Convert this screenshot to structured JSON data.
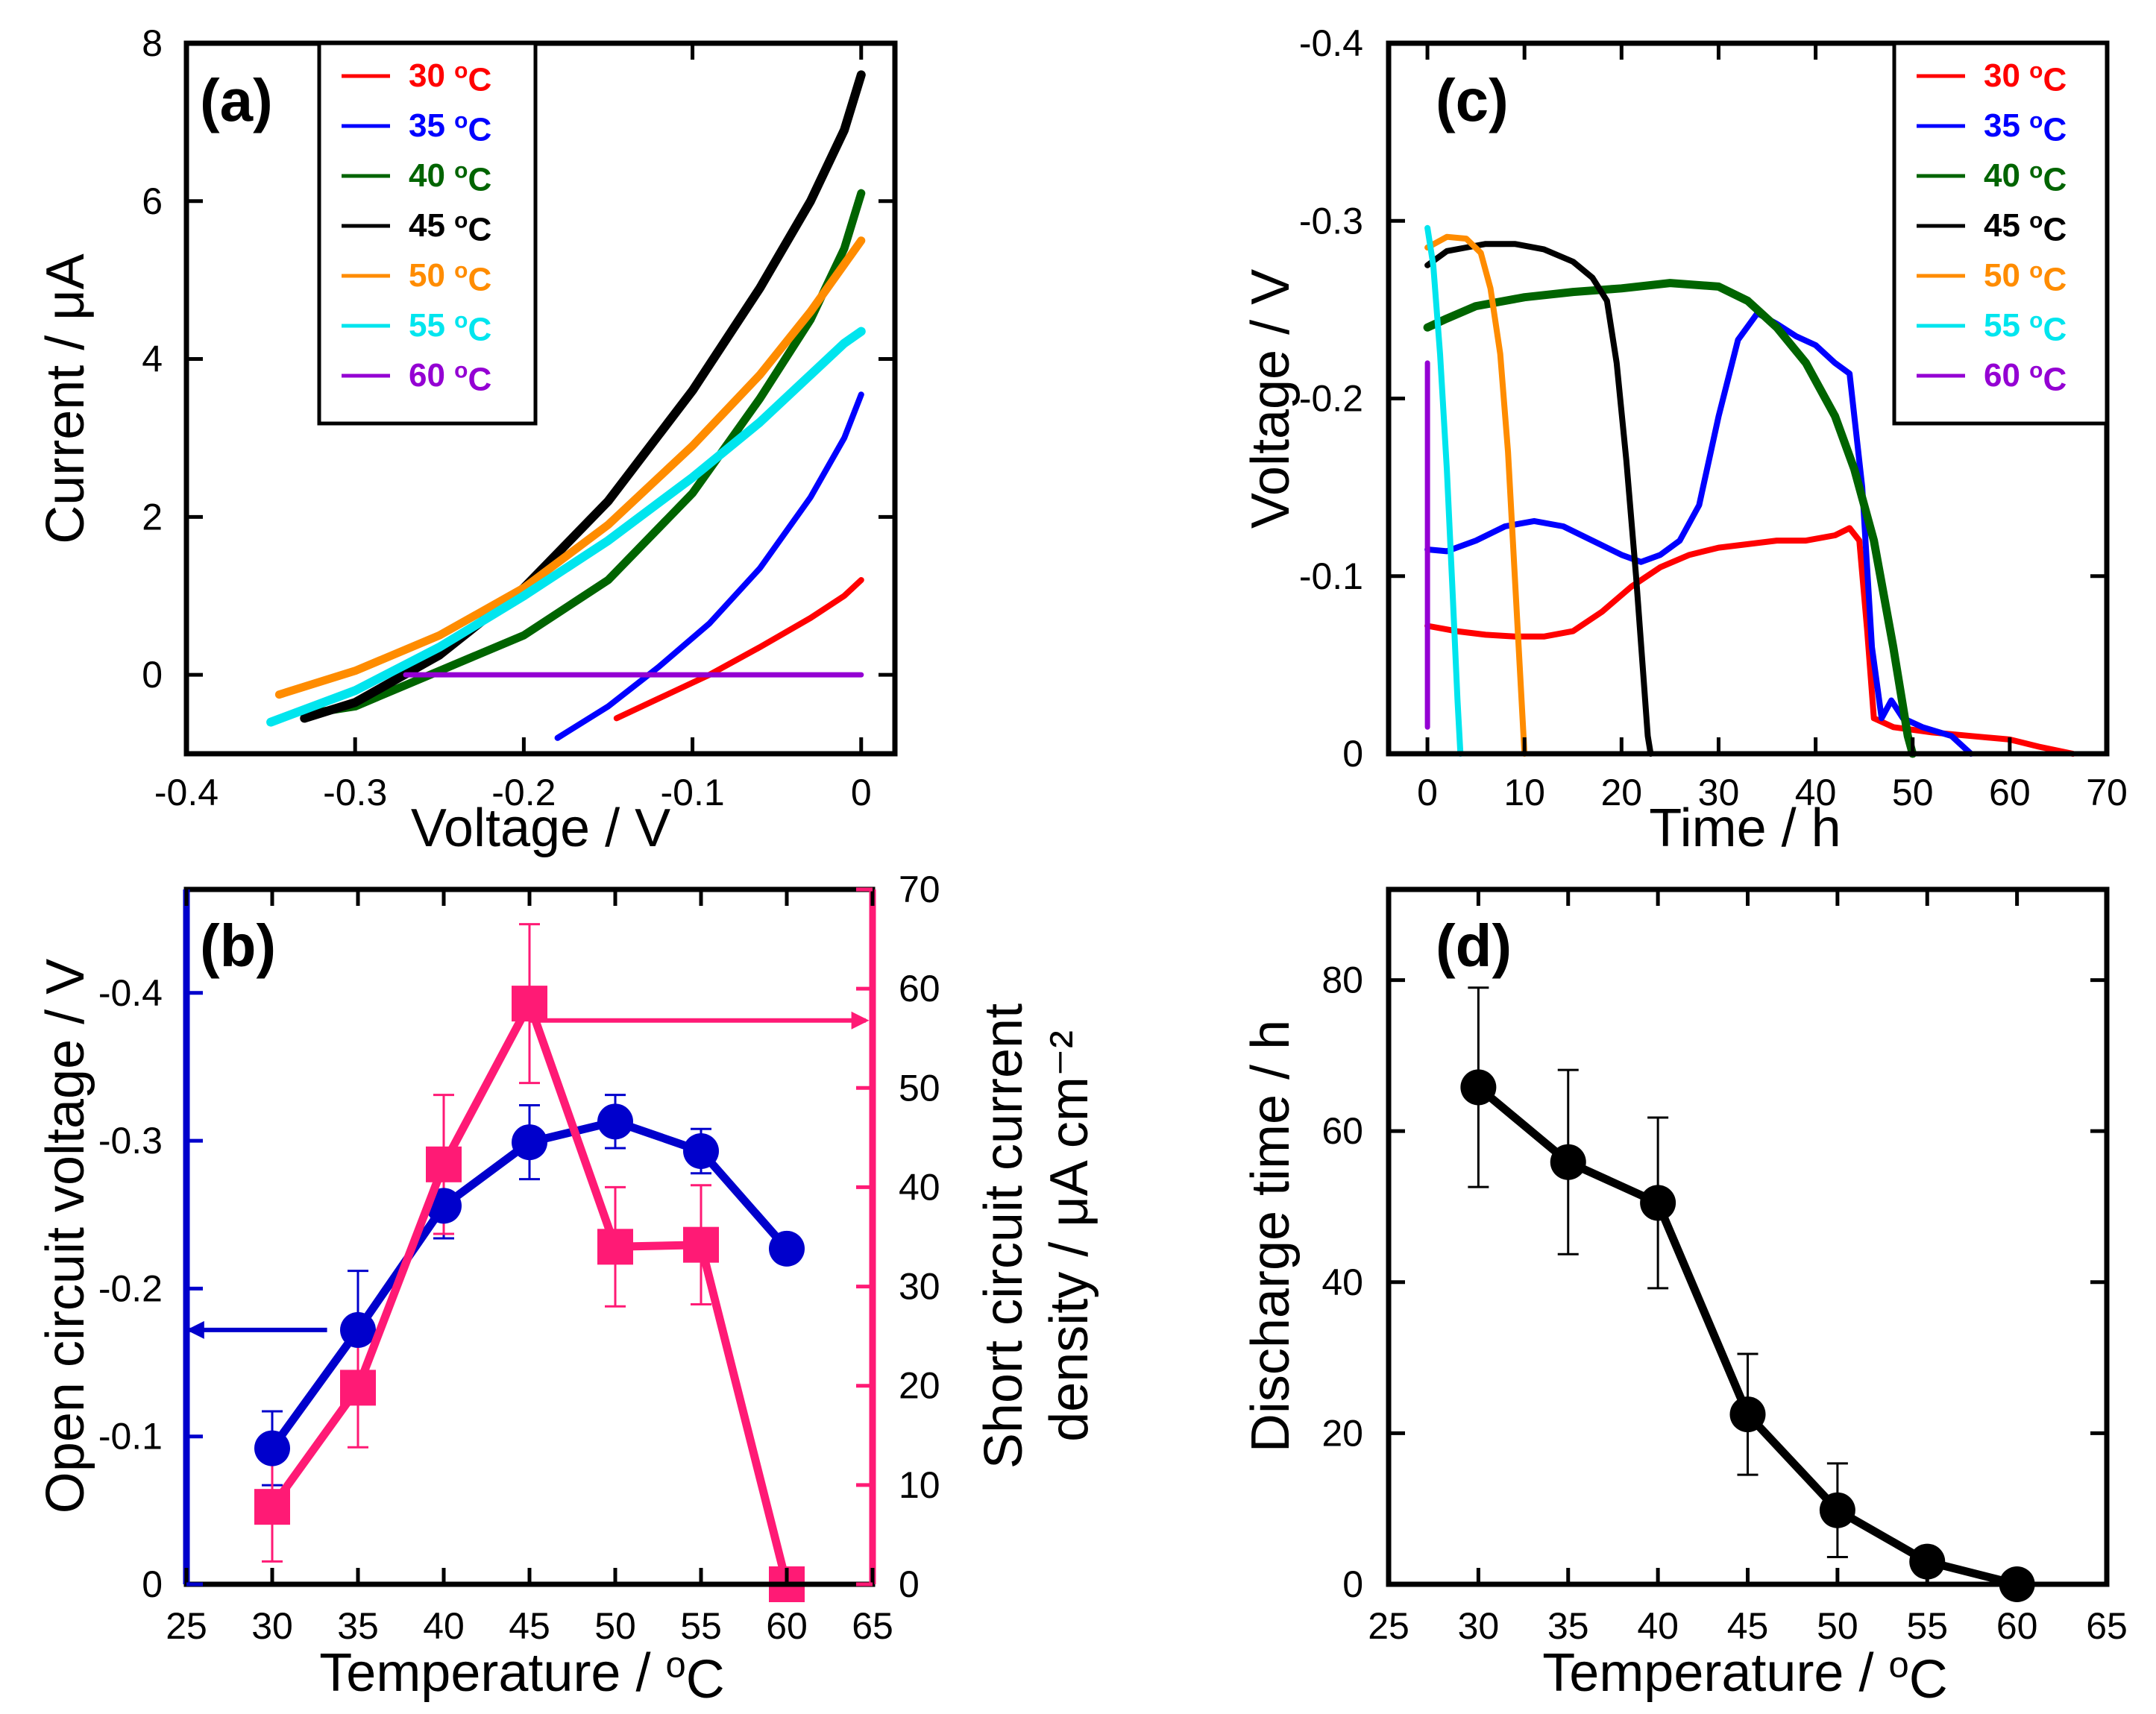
{
  "chart_data": [
    {
      "panel": "(a)",
      "type": "line",
      "xlabel": "Voltage / V",
      "ylabel": "Current / μA",
      "xlim": [
        -0.4,
        0.02
      ],
      "ylim": [
        -1,
        8
      ],
      "xticks": [
        -0.4,
        -0.3,
        -0.2,
        -0.1,
        0
      ],
      "xtick_labels": [
        "-0.4",
        "-0.3",
        "-0.2",
        "-0.1",
        "0"
      ],
      "yticks": [
        0,
        2,
        4,
        6,
        8
      ],
      "ytick_labels": [
        "0",
        "2",
        "4",
        "6",
        "8"
      ],
      "legend_position": "top-left",
      "series": [
        {
          "name": "30 °C",
          "color": "#ff0000",
          "width": 8,
          "x": [
            -0.145,
            -0.12,
            -0.09,
            -0.06,
            -0.03,
            -0.01,
            0
          ],
          "y": [
            -0.55,
            -0.3,
            0.0,
            0.35,
            0.72,
            1.0,
            1.2
          ]
        },
        {
          "name": "35 °C",
          "color": "#0000ff",
          "width": 8,
          "x": [
            -0.18,
            -0.15,
            -0.12,
            -0.09,
            -0.06,
            -0.03,
            -0.01,
            0
          ],
          "y": [
            -0.8,
            -0.4,
            0.1,
            0.65,
            1.35,
            2.25,
            3.0,
            3.55
          ]
        },
        {
          "name": "40 °C",
          "color": "#006400",
          "width": 11,
          "x": [
            -0.33,
            -0.3,
            -0.25,
            -0.2,
            -0.15,
            -0.1,
            -0.06,
            -0.03,
            -0.01,
            0
          ],
          "y": [
            -0.5,
            -0.4,
            0.05,
            0.5,
            1.2,
            2.3,
            3.5,
            4.5,
            5.4,
            6.1
          ]
        },
        {
          "name": "45 °C",
          "color": "#000000",
          "width": 12,
          "x": [
            -0.33,
            -0.3,
            -0.25,
            -0.2,
            -0.15,
            -0.1,
            -0.06,
            -0.03,
            -0.01,
            0
          ],
          "y": [
            -0.55,
            -0.35,
            0.25,
            1.1,
            2.2,
            3.6,
            4.9,
            6.0,
            6.9,
            7.6
          ]
        },
        {
          "name": "50 °C",
          "color": "#ff8c00",
          "width": 11,
          "x": [
            -0.345,
            -0.3,
            -0.25,
            -0.2,
            -0.15,
            -0.1,
            -0.06,
            -0.03,
            -0.01,
            0
          ],
          "y": [
            -0.25,
            0.05,
            0.5,
            1.1,
            1.9,
            2.9,
            3.8,
            4.6,
            5.2,
            5.5
          ]
        },
        {
          "name": "55 °C",
          "color": "#00e5ee",
          "width": 12,
          "x": [
            -0.35,
            -0.3,
            -0.25,
            -0.2,
            -0.15,
            -0.1,
            -0.06,
            -0.03,
            -0.01,
            0
          ],
          "y": [
            -0.6,
            -0.2,
            0.35,
            1.0,
            1.7,
            2.5,
            3.2,
            3.8,
            4.2,
            4.35
          ]
        },
        {
          "name": "60 °C",
          "color": "#9400d3",
          "width": 7,
          "x": [
            -0.27,
            0
          ],
          "y": [
            0,
            0
          ]
        }
      ]
    },
    {
      "panel": "(b)",
      "type": "line",
      "categories": [
        30,
        35,
        40,
        45,
        50,
        55,
        60
      ],
      "xlabel": "Temperature / °C",
      "ylabel": "Open circuit voltage / V",
      "y2label_line1": "Short circuit current",
      "y2label_line2": "density / μA cm⁻²",
      "xlim": [
        25,
        65
      ],
      "ylim": [
        0,
        -0.47
      ],
      "y2lim": [
        0,
        70
      ],
      "xticks": [
        25,
        30,
        35,
        40,
        45,
        50,
        55,
        60,
        65
      ],
      "yticks": [
        0,
        -0.1,
        -0.2,
        -0.3,
        -0.4
      ],
      "ytick_labels": [
        "0",
        "-0.1",
        "-0.2",
        "-0.3",
        "-0.4"
      ],
      "y2ticks": [
        0,
        10,
        20,
        30,
        40,
        50,
        60,
        70
      ],
      "series": [
        {
          "axis": "left",
          "color": "#0000cc",
          "marker": "circle",
          "values": [
            -0.092,
            -0.172,
            -0.256,
            -0.299,
            -0.313,
            -0.293,
            -0.227
          ],
          "errors": [
            0.025,
            0.04,
            0.022,
            0.025,
            0.018,
            0.015,
            0
          ]
        },
        {
          "axis": "right",
          "color": "#ff1a75",
          "marker": "square",
          "values": [
            7.8,
            19.8,
            42.3,
            58.5,
            34.0,
            34.2,
            0
          ],
          "errors": [
            5.5,
            6,
            7,
            8,
            6,
            6,
            0
          ]
        }
      ],
      "annotations": [
        {
          "type": "arrow",
          "axis": "left",
          "points_to": "left",
          "y": -0.172,
          "x_from": 33.2,
          "x_to": 25.2,
          "color": "#0000cc"
        },
        {
          "type": "arrow",
          "axis": "right",
          "points_to": "right",
          "y": 56.8,
          "x_from": 45,
          "x_to": 64.6,
          "color": "#ff1a75"
        }
      ]
    },
    {
      "panel": "(c)",
      "type": "line",
      "xlabel": "Time / h",
      "ylabel": "Voltage / V",
      "xlim": [
        -4,
        70
      ],
      "ylim": [
        0,
        -0.4
      ],
      "xticks": [
        0,
        10,
        20,
        30,
        40,
        50,
        60,
        70
      ],
      "xtick_labels": [
        "0",
        "10",
        "20",
        "30",
        "40",
        "50",
        "60",
        "70"
      ],
      "yticks": [
        0,
        -0.1,
        -0.2,
        -0.3,
        -0.4
      ],
      "ytick_labels": [
        "0",
        "-0.1",
        "-0.2",
        "-0.3",
        "-0.4"
      ],
      "legend_position": "top-right",
      "series": [
        {
          "name": "30 °C",
          "color": "#ff0000",
          "width": 8,
          "x": [
            0,
            3,
            6,
            9,
            12,
            15,
            18,
            21,
            24,
            27,
            30,
            33,
            36,
            39,
            42,
            43.5,
            44.5,
            45.3,
            46,
            48,
            52,
            56,
            60,
            63,
            66.5
          ],
          "y": [
            -0.072,
            -0.069,
            -0.067,
            -0.066,
            -0.066,
            -0.069,
            -0.08,
            -0.094,
            -0.105,
            -0.112,
            -0.116,
            -0.118,
            -0.12,
            -0.12,
            -0.123,
            -0.127,
            -0.12,
            -0.07,
            -0.02,
            -0.015,
            -0.012,
            -0.01,
            -0.008,
            -0.004,
            0
          ]
        },
        {
          "name": "35 °C",
          "color": "#0000ff",
          "width": 8,
          "x": [
            0,
            2,
            5,
            8,
            11,
            14,
            17,
            20,
            22,
            24,
            26,
            28,
            30,
            32,
            34,
            36,
            38,
            40,
            42,
            43.5,
            44.8,
            45.8,
            46.8,
            47.8,
            49,
            51,
            54,
            56
          ],
          "y": [
            -0.115,
            -0.114,
            -0.12,
            -0.128,
            -0.131,
            -0.128,
            -0.12,
            -0.112,
            -0.108,
            -0.112,
            -0.12,
            -0.14,
            -0.19,
            -0.233,
            -0.248,
            -0.242,
            -0.235,
            -0.23,
            -0.22,
            -0.214,
            -0.15,
            -0.06,
            -0.02,
            -0.03,
            -0.02,
            -0.015,
            -0.01,
            0
          ]
        },
        {
          "name": "40 °C",
          "color": "#006400",
          "width": 11,
          "x": [
            0,
            2,
            5,
            10,
            15,
            20,
            25,
            30,
            33,
            36,
            39,
            42,
            44,
            46,
            48,
            49.5,
            50
          ],
          "y": [
            -0.24,
            -0.245,
            -0.252,
            -0.257,
            -0.26,
            -0.262,
            -0.265,
            -0.263,
            -0.255,
            -0.24,
            -0.22,
            -0.19,
            -0.16,
            -0.12,
            -0.06,
            -0.01,
            0
          ]
        },
        {
          "name": "45 °C",
          "color": "#000000",
          "width": 8,
          "x": [
            0,
            2,
            4,
            6,
            9,
            12,
            15,
            17,
            18.5,
            19.5,
            20.5,
            21.5,
            22.3,
            22.7,
            23
          ],
          "y": [
            -0.275,
            -0.283,
            -0.285,
            -0.287,
            -0.287,
            -0.284,
            -0.277,
            -0.268,
            -0.255,
            -0.22,
            -0.165,
            -0.1,
            -0.04,
            -0.01,
            0
          ]
        },
        {
          "name": "50 °C",
          "color": "#ff8c00",
          "width": 8,
          "x": [
            0,
            2,
            4,
            5.5,
            6.5,
            7.5,
            8.3,
            9,
            9.5,
            9.8,
            10
          ],
          "y": [
            -0.285,
            -0.291,
            -0.29,
            -0.282,
            -0.262,
            -0.225,
            -0.17,
            -0.1,
            -0.05,
            -0.02,
            0
          ]
        },
        {
          "name": "55 °C",
          "color": "#00e5ee",
          "width": 8,
          "x": [
            0,
            0.6,
            1.3,
            2,
            2.6,
            3.1,
            3.4
          ],
          "y": [
            -0.296,
            -0.275,
            -0.225,
            -0.16,
            -0.09,
            -0.03,
            0
          ]
        },
        {
          "name": "60 °C",
          "color": "#9400d3",
          "width": 7,
          "x": [
            0,
            0
          ],
          "y": [
            -0.22,
            -0.015
          ]
        }
      ]
    },
    {
      "panel": "(d)",
      "type": "line",
      "categories": [
        30,
        35,
        40,
        45,
        50,
        55,
        60
      ],
      "values": [
        65.8,
        55.9,
        50.5,
        22.5,
        9.8,
        3.0,
        0
      ],
      "errors": [
        13.2,
        12.2,
        11.3,
        8.0,
        6.2,
        0,
        0
      ],
      "xlabel": "Temperature / °C",
      "ylabel": "Discharge time / h",
      "xlim": [
        25,
        65
      ],
      "ylim": [
        0,
        92
      ],
      "xticks": [
        25,
        30,
        35,
        40,
        45,
        50,
        55,
        60,
        65
      ],
      "yticks": [
        0,
        20,
        40,
        60,
        80
      ],
      "color": "#000000",
      "marker": "circle"
    }
  ]
}
